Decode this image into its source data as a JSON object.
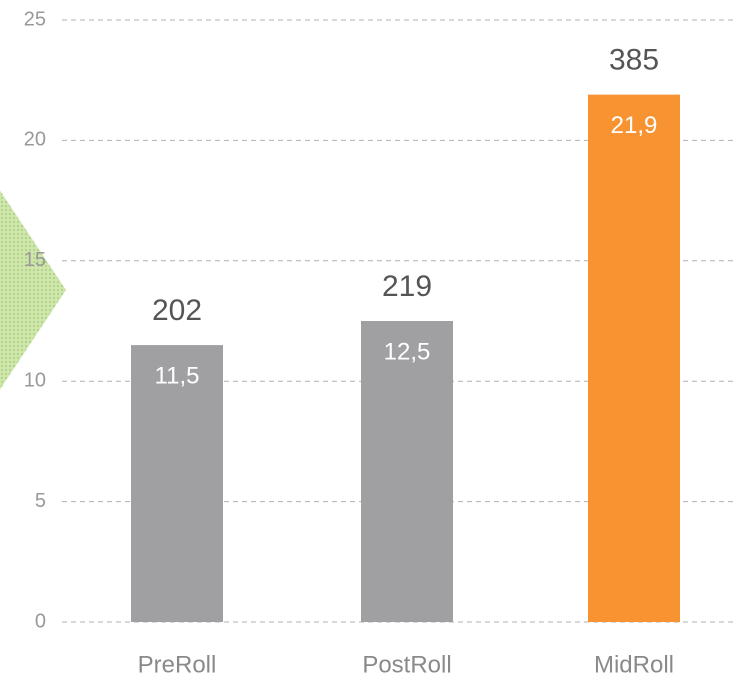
{
  "chart_data": {
    "type": "bar",
    "categories": [
      "PreRoll",
      "PostRoll",
      "MidRoll"
    ],
    "values": [
      11.5,
      12.5,
      21.9
    ],
    "value_labels": [
      "11,5",
      "12,5",
      "21,9"
    ],
    "top_labels": [
      "202",
      "219",
      "385"
    ],
    "colors": [
      "#a0a0a2",
      "#a0a0a2",
      "#f79431"
    ],
    "ylim": [
      0,
      25
    ],
    "yticks": [
      0,
      5,
      10,
      15,
      20,
      25
    ],
    "grid": true
  }
}
